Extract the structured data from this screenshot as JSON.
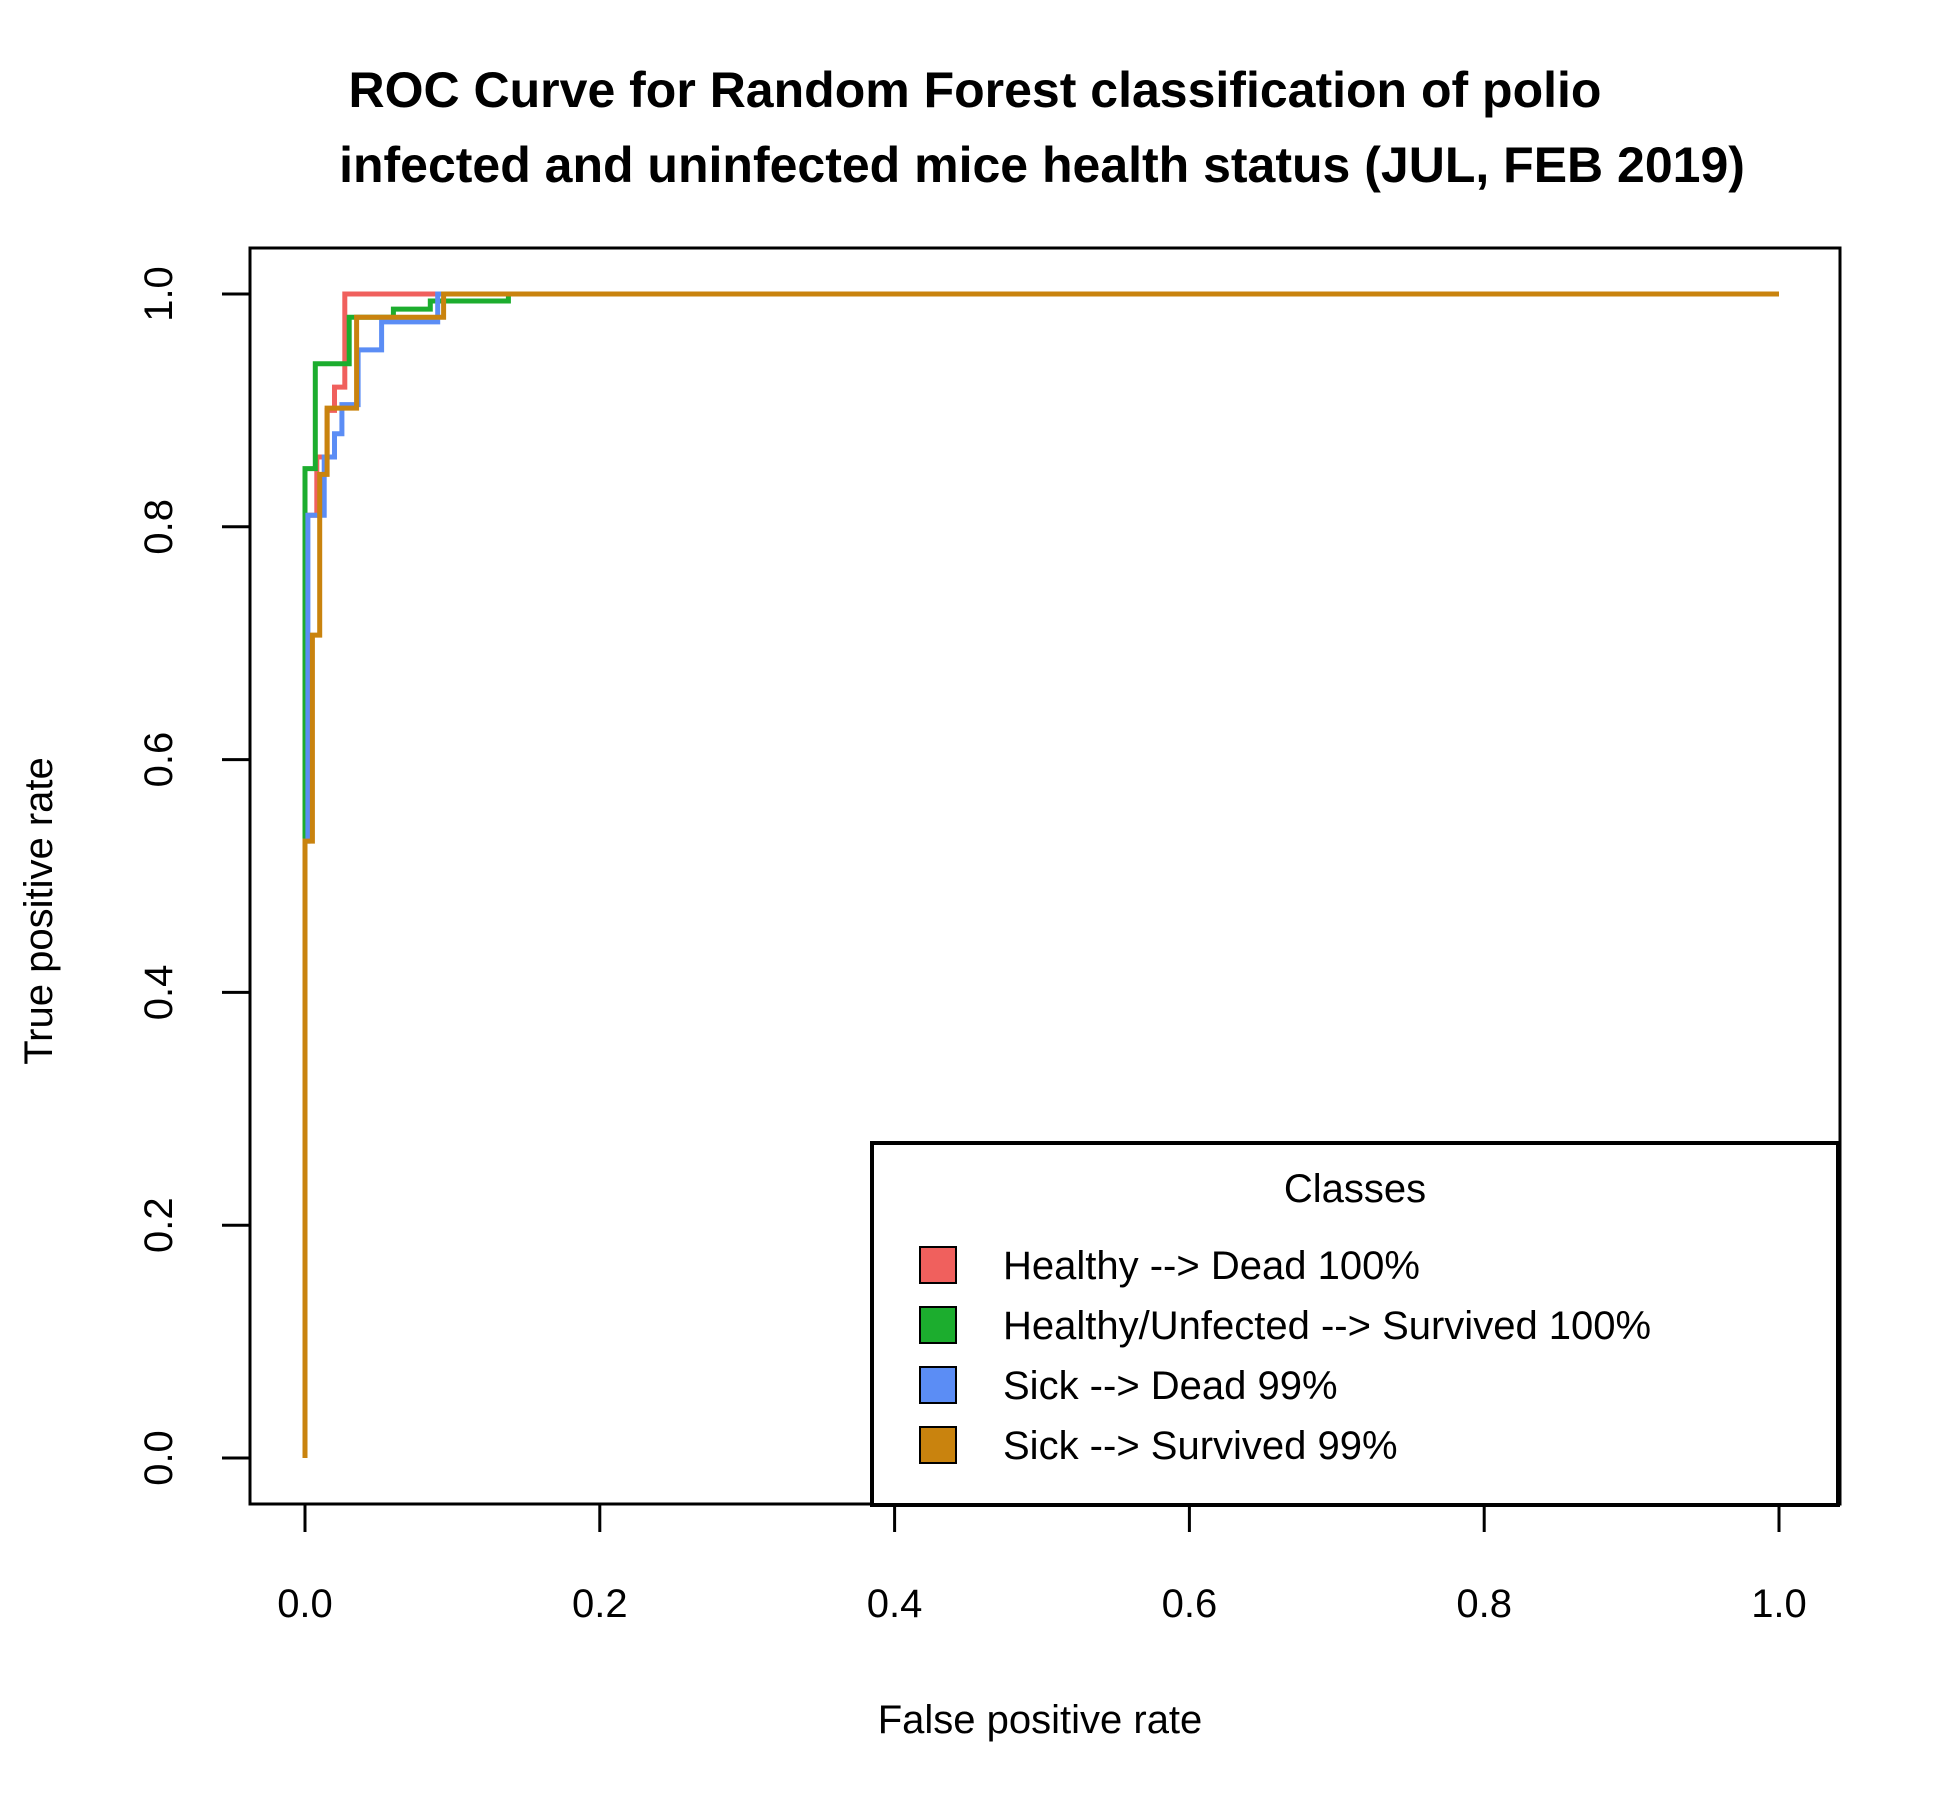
{
  "chart_data": {
    "type": "line",
    "title": "ROC Curve for Random Forest classification of polio infected and uninfected mice health status (JUL, FEB 2019)",
    "title_lines": [
      "ROC Curve for Random Forest classification of polio",
      "infected and uninfected mice health status (JUL, FEB 2019)"
    ],
    "xlabel": "False positive rate",
    "ylabel": "True positive rate",
    "xlim": [
      0,
      1
    ],
    "ylim": [
      0,
      1
    ],
    "xticks": [
      "0.0",
      "0.2",
      "0.4",
      "0.6",
      "0.8",
      "1.0"
    ],
    "yticks": [
      "0.0",
      "0.2",
      "0.4",
      "0.6",
      "0.8",
      "1.0"
    ],
    "grid": false,
    "legend": {
      "title": "Classes",
      "placement": "bottom-right"
    },
    "series": [
      {
        "name": "Healthy --> Dead 100%",
        "color": "#F0605D",
        "points": [
          [
            0,
            0
          ],
          [
            0,
            0.81
          ],
          [
            0.008,
            0.81
          ],
          [
            0.008,
            0.86
          ],
          [
            0.015,
            0.86
          ],
          [
            0.015,
            0.9
          ],
          [
            0.02,
            0.9
          ],
          [
            0.02,
            0.92
          ],
          [
            0.027,
            0.92
          ],
          [
            0.027,
            1.0
          ],
          [
            1.0,
            1.0
          ]
        ]
      },
      {
        "name": "Healthy/Unfected --> Survived 100%",
        "color": "#1CAD2E",
        "points": [
          [
            0,
            0
          ],
          [
            0,
            0.85
          ],
          [
            0.007,
            0.85
          ],
          [
            0.007,
            0.94
          ],
          [
            0.03,
            0.94
          ],
          [
            0.03,
            0.98
          ],
          [
            0.06,
            0.98
          ],
          [
            0.06,
            0.987
          ],
          [
            0.085,
            0.987
          ],
          [
            0.085,
            0.994
          ],
          [
            0.138,
            0.994
          ],
          [
            0.138,
            1.0
          ],
          [
            1.0,
            1.0
          ]
        ]
      },
      {
        "name": "Sick --> Dead 99%",
        "color": "#5B8DF5",
        "points": [
          [
            0,
            0
          ],
          [
            0,
            0.53
          ],
          [
            0.002,
            0.53
          ],
          [
            0.002,
            0.81
          ],
          [
            0.013,
            0.81
          ],
          [
            0.013,
            0.86
          ],
          [
            0.02,
            0.86
          ],
          [
            0.02,
            0.88
          ],
          [
            0.025,
            0.88
          ],
          [
            0.025,
            0.905
          ],
          [
            0.036,
            0.905
          ],
          [
            0.036,
            0.952
          ],
          [
            0.052,
            0.952
          ],
          [
            0.052,
            0.976
          ],
          [
            0.09,
            0.976
          ],
          [
            0.09,
            1.0
          ],
          [
            1.0,
            1.0
          ]
        ]
      },
      {
        "name": "Sick --> Survived 99%",
        "color": "#C9830E",
        "points": [
          [
            0,
            0
          ],
          [
            0,
            0.53
          ],
          [
            0.005,
            0.53
          ],
          [
            0.005,
            0.707
          ],
          [
            0.01,
            0.707
          ],
          [
            0.01,
            0.845
          ],
          [
            0.015,
            0.845
          ],
          [
            0.015,
            0.902
          ],
          [
            0.035,
            0.902
          ],
          [
            0.035,
            0.98
          ],
          [
            0.094,
            0.98
          ],
          [
            0.094,
            1.0
          ],
          [
            1.0,
            1.0
          ]
        ]
      }
    ]
  }
}
